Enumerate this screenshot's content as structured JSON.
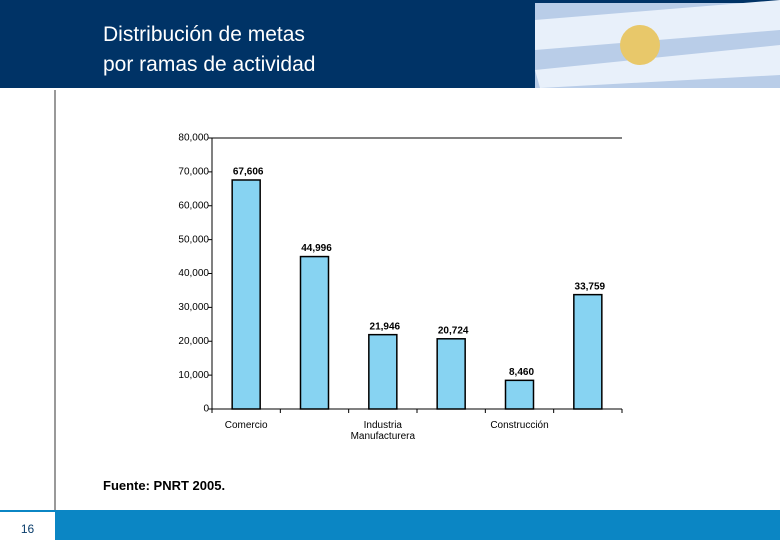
{
  "slide": {
    "title_lines": [
      "Distribución de metas",
      "por ramas de actividad"
    ],
    "source": "Fuente: PNRT 2005.",
    "page_number": 16
  },
  "chart_data": {
    "type": "bar",
    "categories": [
      "Comercio",
      null,
      "Industria Manufacturera",
      null,
      "Construcción",
      null
    ],
    "values": [
      67606,
      44996,
      21946,
      20724,
      8460,
      33759
    ],
    "value_labels": [
      "67,606",
      "44,996",
      "21,946",
      "20,724",
      "8,460",
      "33,759"
    ],
    "color": "#87d3f2",
    "ylim": [
      0,
      80000
    ],
    "yticks": [
      0,
      {
        "value": 10000,
        "label": "10,000"
      },
      {
        "value": 20000,
        "label": "20,000"
      },
      {
        "value": 30000,
        "label": "30,000"
      },
      {
        "value": 40000,
        "label": "40,000"
      },
      {
        "value": 50000,
        "label": "50,000"
      },
      {
        "value": 60000,
        "label": "60,000"
      },
      {
        "value": 70000,
        "label": "70,000"
      },
      {
        "value": 80000,
        "label": "80,000"
      }
    ],
    "grid": false
  }
}
